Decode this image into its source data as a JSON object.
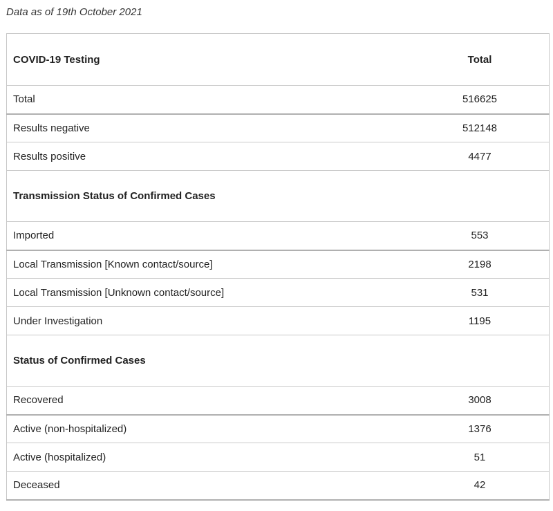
{
  "note": "Data as of 19th October 2021",
  "header": {
    "label": "COVID-19 Testing",
    "total_label": "Total"
  },
  "testing_rows": [
    {
      "label": "Total",
      "value": "516625"
    },
    {
      "label": "Results negative",
      "value": "512148"
    },
    {
      "label": "Results positive",
      "value": "4477"
    }
  ],
  "transmission": {
    "heading": "Transmission Status of Confirmed Cases",
    "rows": [
      {
        "label": "Imported",
        "value": "553"
      },
      {
        "label": "Local Transmission [Known contact/source]",
        "value": "2198"
      },
      {
        "label": "Local Transmission [Unknown contact/source]",
        "value": "531"
      },
      {
        "label": "Under Investigation",
        "value": "1195"
      }
    ]
  },
  "status": {
    "heading": "Status of Confirmed Cases",
    "rows": [
      {
        "label": "Recovered",
        "value": "3008"
      },
      {
        "label": "Active (non-hospitalized)",
        "value": "1376"
      },
      {
        "label": "Active (hospitalized)",
        "value": "51"
      },
      {
        "label": "Deceased",
        "value": "42"
      }
    ]
  }
}
